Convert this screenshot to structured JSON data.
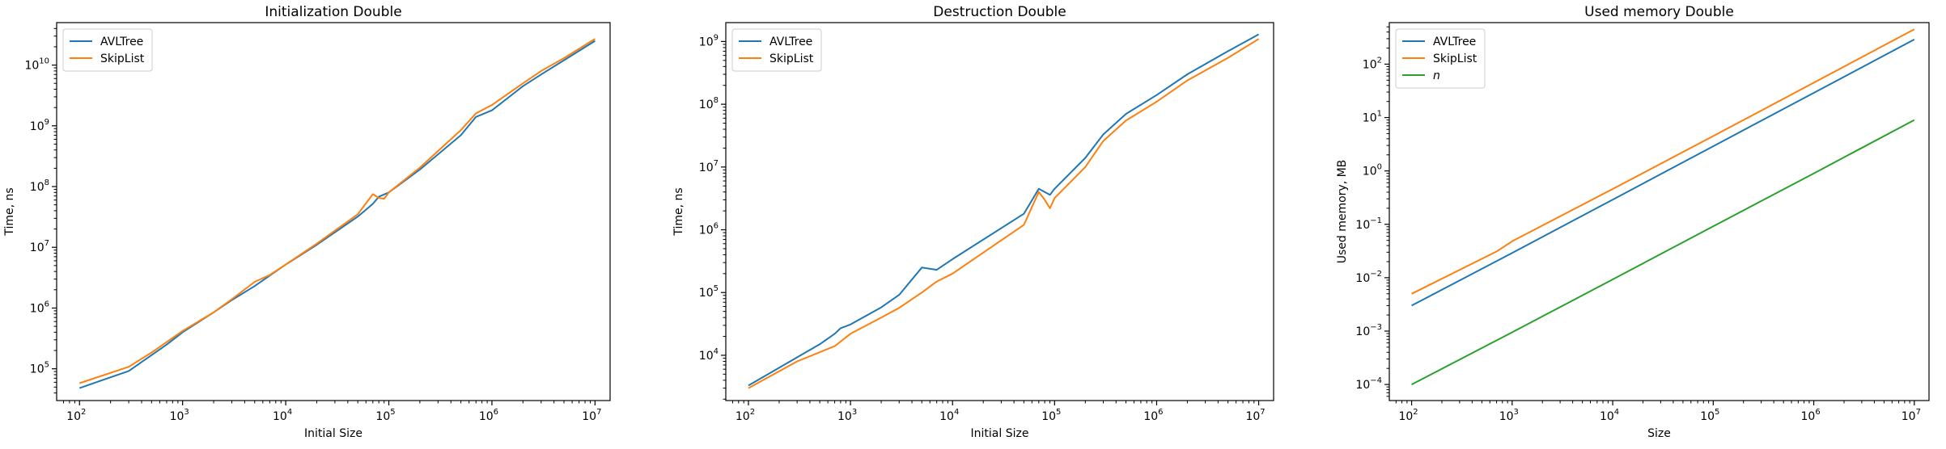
{
  "figure": {
    "background": "#ffffff"
  },
  "chart_data": [
    {
      "type": "line",
      "title": "Initialization Double",
      "xlabel": "Initial Size",
      "ylabel": "Time, ns",
      "xscale": "log",
      "yscale": "log",
      "xlim": [
        60,
        14000000
      ],
      "ylim": [
        30000,
        50000000000
      ],
      "xticks": [
        {
          "v": 100,
          "e": "2"
        },
        {
          "v": 1000,
          "e": "3"
        },
        {
          "v": 10000,
          "e": "4"
        },
        {
          "v": 100000,
          "e": "5"
        },
        {
          "v": 1000000,
          "e": "6"
        },
        {
          "v": 10000000,
          "e": "7"
        }
      ],
      "yticks": [
        {
          "v": 100000,
          "e": "5"
        },
        {
          "v": 1000000,
          "e": "6"
        },
        {
          "v": 10000000,
          "e": "7"
        },
        {
          "v": 100000000,
          "e": "8"
        },
        {
          "v": 1000000000,
          "e": "9"
        },
        {
          "v": 10000000000,
          "e": "10"
        }
      ],
      "tick_base": "10",
      "grid": false,
      "legend": "top-left",
      "series": [
        {
          "name": "AVLTree",
          "color": "#1f77b4",
          "x": [
            100,
            300,
            700,
            1000,
            2000,
            3000,
            5000,
            10000,
            20000,
            50000,
            70000,
            80000,
            90000,
            100000,
            200000,
            500000,
            700000,
            1000000,
            2000000,
            3000000,
            5000000,
            10000000
          ],
          "y": [
            48000,
            92000,
            250000,
            400000,
            850000,
            1350000,
            2300000,
            5200000,
            11000000,
            32000000,
            52000000,
            68000000,
            74000000,
            80000000,
            190000000,
            700000000,
            1400000000,
            1800000000,
            4500000000,
            7000000000,
            12000000000,
            25000000000
          ]
        },
        {
          "name": "SkipList",
          "color": "#ff7f0e",
          "x": [
            100,
            300,
            500,
            1000,
            2000,
            3000,
            5000,
            7000,
            10000,
            20000,
            50000,
            70000,
            80000,
            90000,
            100000,
            200000,
            500000,
            700000,
            1000000,
            2000000,
            3000000,
            5000000,
            10000000
          ],
          "y": [
            58000,
            108000,
            185000,
            420000,
            850000,
            1400000,
            2700000,
            3500000,
            5200000,
            11500000,
            35000000,
            75000000,
            65000000,
            63000000,
            80000000,
            205000000,
            850000000,
            1600000000,
            2200000000,
            5000000000,
            8000000000,
            13000000000,
            27000000000
          ]
        }
      ]
    },
    {
      "type": "line",
      "title": "Destruction Double",
      "xlabel": "Initial Size",
      "ylabel": "Time, ns",
      "xscale": "log",
      "yscale": "log",
      "xlim": [
        60,
        14000000
      ],
      "ylim": [
        1900,
        2000000000
      ],
      "xticks": [
        {
          "v": 100,
          "e": "2"
        },
        {
          "v": 1000,
          "e": "3"
        },
        {
          "v": 10000,
          "e": "4"
        },
        {
          "v": 100000,
          "e": "5"
        },
        {
          "v": 1000000,
          "e": "6"
        },
        {
          "v": 10000000,
          "e": "7"
        }
      ],
      "yticks": [
        {
          "v": 10000,
          "e": "4"
        },
        {
          "v": 100000,
          "e": "5"
        },
        {
          "v": 1000000,
          "e": "6"
        },
        {
          "v": 10000000,
          "e": "7"
        },
        {
          "v": 100000000,
          "e": "8"
        },
        {
          "v": 1000000000,
          "e": "9"
        }
      ],
      "tick_base": "10",
      "grid": false,
      "legend": "top-left",
      "series": [
        {
          "name": "AVLTree",
          "color": "#1f77b4",
          "x": [
            100,
            500,
            700,
            800,
            1000,
            2000,
            3000,
            5000,
            7000,
            10000,
            50000,
            70000,
            80000,
            90000,
            100000,
            200000,
            300000,
            500000,
            1000000,
            2000000,
            5000000,
            10000000
          ],
          "y": [
            3300,
            15000,
            22000,
            27000,
            31000,
            58000,
            92000,
            250000,
            230000,
            340000,
            1800000,
            4500000,
            4000000,
            3600000,
            4500000,
            14000000,
            33000000,
            70000000,
            140000000,
            300000000,
            700000000,
            1300000000
          ]
        },
        {
          "name": "SkipList",
          "color": "#ff7f0e",
          "x": [
            100,
            300,
            700,
            1000,
            2000,
            3000,
            5000,
            7000,
            10000,
            50000,
            70000,
            80000,
            90000,
            100000,
            200000,
            300000,
            500000,
            1000000,
            2000000,
            5000000,
            10000000
          ],
          "y": [
            3000,
            8000,
            14000,
            22000,
            40000,
            57000,
            100000,
            150000,
            200000,
            1200000,
            4000000,
            3000000,
            2200000,
            3200000,
            10000000,
            26000000,
            55000000,
            110000000,
            240000000,
            550000000,
            1100000000
          ]
        }
      ]
    },
    {
      "type": "line",
      "title": "Used memory Double",
      "xlabel": "Size",
      "ylabel": "Used memory, MB",
      "xscale": "log",
      "yscale": "log",
      "xlim": [
        60,
        14000000
      ],
      "ylim": [
        5e-05,
        600
      ],
      "xticks": [
        {
          "v": 100,
          "e": "2"
        },
        {
          "v": 1000,
          "e": "3"
        },
        {
          "v": 10000,
          "e": "4"
        },
        {
          "v": 100000,
          "e": "5"
        },
        {
          "v": 1000000,
          "e": "6"
        },
        {
          "v": 10000000,
          "e": "7"
        }
      ],
      "yticks": [
        {
          "v": 0.0001,
          "e": "−4"
        },
        {
          "v": 0.001,
          "e": "−3"
        },
        {
          "v": 0.01,
          "e": "−2"
        },
        {
          "v": 0.1,
          "e": "−1"
        },
        {
          "v": 1,
          "e": "0"
        },
        {
          "v": 10,
          "e": "1"
        },
        {
          "v": 100,
          "e": "2"
        }
      ],
      "tick_base": "10",
      "grid": false,
      "legend": "top-left",
      "series": [
        {
          "name": "AVLTree",
          "color": "#1f77b4",
          "x": [
            100,
            1000,
            10000,
            100000,
            1000000,
            10000000
          ],
          "y": [
            0.003,
            0.029,
            0.29,
            2.9,
            29,
            290
          ]
        },
        {
          "name": "SkipList",
          "color": "#ff7f0e",
          "x": [
            100,
            700,
            1000,
            10000,
            100000,
            1000000,
            10000000
          ],
          "y": [
            0.005,
            0.031,
            0.048,
            0.46,
            4.5,
            45,
            450
          ]
        },
        {
          "name": "n",
          "italic": true,
          "color": "#2ca02c",
          "x": [
            100,
            1000,
            10000,
            100000,
            1000000,
            10000000
          ],
          "y": [
            0.0001,
            0.00095,
            0.0093,
            0.092,
            0.9,
            9
          ]
        }
      ]
    }
  ]
}
